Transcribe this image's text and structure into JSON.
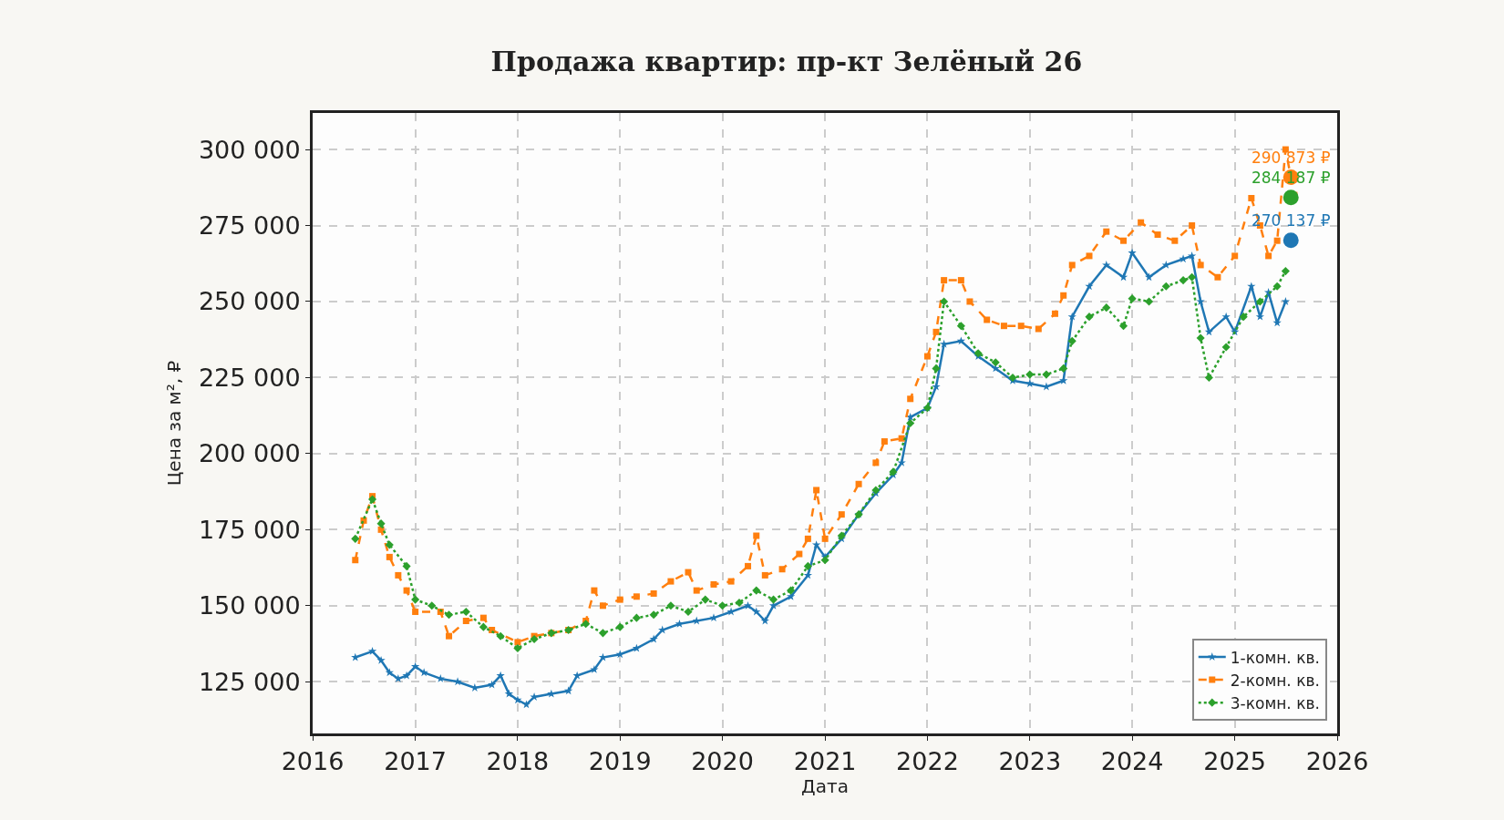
{
  "chart_data": {
    "type": "line",
    "title": "Продажа квартир: пр-кт Зелёный 26",
    "xlabel": "Дата",
    "ylabel": "Цена за м², ₽",
    "xlim": [
      "2016-01-01",
      "2026-01-01"
    ],
    "xticks": [
      "2016",
      "2017",
      "2018",
      "2019",
      "2020",
      "2021",
      "2022",
      "2023",
      "2024",
      "2025",
      "2026"
    ],
    "ylim": [
      108000,
      312000
    ],
    "yticks": [
      {
        "value": 125000,
        "label": "125 000"
      },
      {
        "value": 150000,
        "label": "150 000"
      },
      {
        "value": 175000,
        "label": "175 000"
      },
      {
        "value": 200000,
        "label": "200 000"
      },
      {
        "value": 225000,
        "label": "225 000"
      },
      {
        "value": 250000,
        "label": "250 000"
      },
      {
        "value": 275000,
        "label": "275 000"
      },
      {
        "value": 300000,
        "label": "300 000"
      }
    ],
    "grid": true,
    "legend": "bottom right",
    "series": [
      {
        "name": "1-комн. кв.",
        "color": "#1f77b4",
        "marker": "star",
        "line_style": "solid",
        "x": [
          "2016-06",
          "2016-08",
          "2016-09",
          "2016-10",
          "2016-11",
          "2016-12",
          "2017-01",
          "2017-02",
          "2017-04",
          "2017-06",
          "2017-08",
          "2017-10",
          "2017-11",
          "2017-12",
          "2018-01",
          "2018-02",
          "2018-03",
          "2018-05",
          "2018-07",
          "2018-08",
          "2018-10",
          "2018-11",
          "2019-01",
          "2019-03",
          "2019-05",
          "2019-06",
          "2019-08",
          "2019-10",
          "2019-12",
          "2020-02",
          "2020-04",
          "2020-05",
          "2020-06",
          "2020-07",
          "2020-09",
          "2020-11",
          "2020-12",
          "2021-01",
          "2021-03",
          "2021-05",
          "2021-07",
          "2021-09",
          "2021-10",
          "2021-11",
          "2022-01",
          "2022-02",
          "2022-03",
          "2022-05",
          "2022-07",
          "2022-09",
          "2022-11",
          "2023-01",
          "2023-03",
          "2023-05",
          "2023-06",
          "2023-08",
          "2023-10",
          "2023-12",
          "2024-01",
          "2024-03",
          "2024-05",
          "2024-07",
          "2024-08",
          "2024-09",
          "2024-10",
          "2024-12",
          "2025-01",
          "2025-03",
          "2025-04",
          "2025-05",
          "2025-06",
          "2025-07"
        ],
        "values": [
          133000,
          135000,
          132000,
          128000,
          126000,
          127000,
          130000,
          128000,
          126000,
          125000,
          123000,
          124000,
          127000,
          121000,
          119000,
          117500,
          120000,
          121000,
          122000,
          127000,
          129000,
          133000,
          134000,
          136000,
          139000,
          142000,
          144000,
          145000,
          146000,
          148000,
          150000,
          148000,
          145000,
          150000,
          153000,
          160000,
          170000,
          166000,
          172000,
          180000,
          187000,
          193000,
          197000,
          212000,
          215000,
          222000,
          236000,
          237000,
          232000,
          228000,
          224000,
          223000,
          222000,
          224000,
          245000,
          255000,
          262000,
          258000,
          266000,
          258000,
          262000,
          264000,
          265000,
          250000,
          240000,
          245000,
          240000,
          255000,
          245000,
          253000,
          243000,
          250000
        ]
      },
      {
        "name": "2-комн. кв.",
        "color": "#ff7f0e",
        "marker": "square",
        "line_style": "dashed",
        "x": [
          "2016-06",
          "2016-07",
          "2016-08",
          "2016-09",
          "2016-10",
          "2016-11",
          "2016-12",
          "2017-01",
          "2017-04",
          "2017-05",
          "2017-07",
          "2017-09",
          "2017-10",
          "2018-01",
          "2018-03",
          "2018-05",
          "2018-07",
          "2018-09",
          "2018-10",
          "2018-11",
          "2019-01",
          "2019-03",
          "2019-05",
          "2019-07",
          "2019-09",
          "2019-10",
          "2019-12",
          "2020-02",
          "2020-04",
          "2020-05",
          "2020-06",
          "2020-08",
          "2020-10",
          "2020-11",
          "2020-12",
          "2021-01",
          "2021-03",
          "2021-05",
          "2021-07",
          "2021-08",
          "2021-10",
          "2021-11",
          "2022-01",
          "2022-02",
          "2022-03",
          "2022-05",
          "2022-06",
          "2022-08",
          "2022-10",
          "2022-12",
          "2023-02",
          "2023-04",
          "2023-05",
          "2023-06",
          "2023-08",
          "2023-10",
          "2023-12",
          "2024-02",
          "2024-04",
          "2024-06",
          "2024-08",
          "2024-09",
          "2024-11",
          "2025-01",
          "2025-03",
          "2025-04",
          "2025-05",
          "2025-06",
          "2025-07",
          "2025-08"
        ],
        "values": [
          165000,
          178000,
          186000,
          175000,
          166000,
          160000,
          155000,
          148000,
          148000,
          140000,
          145000,
          146000,
          142000,
          138000,
          140000,
          141000,
          142000,
          145000,
          155000,
          150000,
          152000,
          153000,
          154000,
          158000,
          161000,
          155000,
          157000,
          158000,
          163000,
          173000,
          160000,
          162000,
          167000,
          172000,
          188000,
          172000,
          180000,
          190000,
          197000,
          204000,
          205000,
          218000,
          232000,
          240000,
          257000,
          257000,
          250000,
          244000,
          242000,
          242000,
          241000,
          246000,
          252000,
          262000,
          265000,
          273000,
          270000,
          276000,
          272000,
          270000,
          275000,
          262000,
          258000,
          265000,
          284000,
          275000,
          265000,
          270000,
          300000,
          285000
        ]
      },
      {
        "name": "3-комн. кв.",
        "color": "#2ca02c",
        "marker": "diamond",
        "line_style": "dotted",
        "x": [
          "2016-06",
          "2016-08",
          "2016-09",
          "2016-10",
          "2016-12",
          "2017-01",
          "2017-03",
          "2017-05",
          "2017-07",
          "2017-09",
          "2017-11",
          "2018-01",
          "2018-03",
          "2018-05",
          "2018-07",
          "2018-09",
          "2018-11",
          "2019-01",
          "2019-03",
          "2019-05",
          "2019-07",
          "2019-09",
          "2019-11",
          "2020-01",
          "2020-03",
          "2020-05",
          "2020-07",
          "2020-09",
          "2020-11",
          "2021-01",
          "2021-03",
          "2021-05",
          "2021-07",
          "2021-09",
          "2021-11",
          "2022-01",
          "2022-02",
          "2022-03",
          "2022-05",
          "2022-07",
          "2022-09",
          "2022-11",
          "2023-01",
          "2023-03",
          "2023-05",
          "2023-06",
          "2023-08",
          "2023-10",
          "2023-12",
          "2024-01",
          "2024-03",
          "2024-05",
          "2024-07",
          "2024-08",
          "2024-09",
          "2024-10",
          "2024-12",
          "2025-02",
          "2025-04",
          "2025-06",
          "2025-07"
        ],
        "values": [
          172000,
          185000,
          177000,
          170000,
          163000,
          152000,
          150000,
          147000,
          148000,
          143000,
          140000,
          136000,
          139000,
          141000,
          142000,
          144000,
          141000,
          143000,
          146000,
          147000,
          150000,
          148000,
          152000,
          150000,
          151000,
          155000,
          152000,
          155000,
          163000,
          165000,
          173000,
          180000,
          188000,
          194000,
          210000,
          215000,
          228000,
          250000,
          242000,
          233000,
          230000,
          225000,
          226000,
          226000,
          228000,
          237000,
          245000,
          248000,
          242000,
          251000,
          250000,
          255000,
          257000,
          258000,
          238000,
          225000,
          235000,
          245000,
          250000,
          255000,
          260000
        ]
      },
      {
        "type": "scatter",
        "marker": "circle",
        "x": [
          "2025-07-20",
          "2025-07-20",
          "2025-07-20"
        ],
        "colors": [
          "#1f77b4",
          "#ff7f0e",
          "#2ca02c"
        ],
        "values": [
          270137,
          290873,
          284187
        ],
        "value_labels": [
          "270 137 ₽",
          "290 873 ₽",
          "284 187 ₽"
        ]
      }
    ]
  }
}
